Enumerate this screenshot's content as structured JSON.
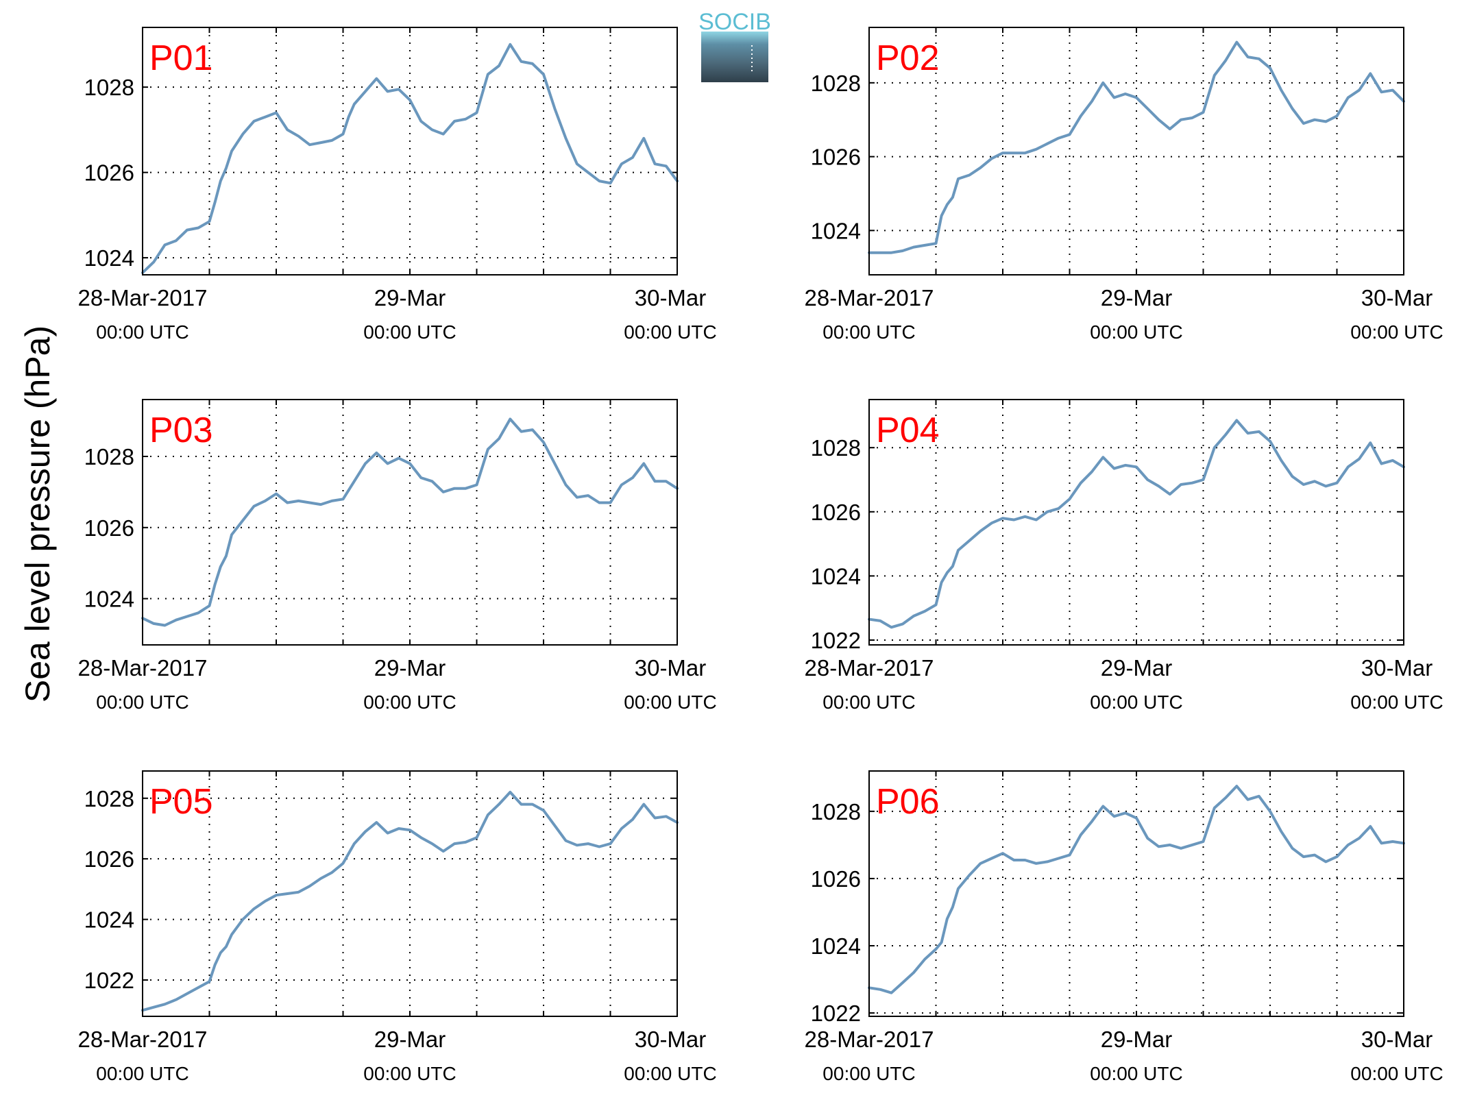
{
  "logo": {
    "text": "SOCIB"
  },
  "colors": {
    "series": "#6a97bd",
    "panel_label": "#ff0000",
    "logo_text": "#5bbdd3",
    "logo_dark": "#31434f"
  },
  "y_label": "Sea level pressure (hPa)",
  "x_tick_labels": [
    {
      "date": "28-Mar-2017",
      "time": "00:00 UTC"
    },
    {
      "date": "29-Mar",
      "time": "00:00 UTC"
    },
    {
      "date": "30-Mar",
      "time": "00:00 UTC"
    }
  ],
  "chart_data": [
    {
      "type": "line",
      "title": "P01",
      "x_unit": "hours since 28-Mar-2017 00:00 UTC",
      "xlim": [
        0,
        48
      ],
      "ylim": [
        1023.6,
        1029.4
      ],
      "yticks": [
        1024,
        1026,
        1028
      ],
      "xticks": [
        0,
        6,
        12,
        18,
        24,
        30,
        36,
        42,
        48
      ],
      "grid": true,
      "series": [
        {
          "x": [
            0,
            1,
            2,
            3,
            4,
            5,
            6,
            6.5,
            7,
            7.5,
            8,
            9,
            10,
            11,
            12,
            13,
            14,
            15,
            16,
            17,
            18,
            18.5,
            19,
            20,
            21,
            22,
            23,
            24,
            25,
            26,
            27,
            28,
            29,
            30,
            31,
            32,
            33,
            34,
            35,
            36,
            37,
            38,
            39,
            40,
            41,
            42,
            43,
            44,
            45,
            46,
            47,
            48
          ],
          "y": [
            1023.65,
            1023.9,
            1024.3,
            1024.4,
            1024.65,
            1024.7,
            1024.85,
            1025.3,
            1025.8,
            1026.1,
            1026.5,
            1026.9,
            1027.2,
            1027.3,
            1027.4,
            1027.0,
            1026.85,
            1026.65,
            1026.7,
            1026.75,
            1026.9,
            1027.3,
            1027.6,
            1027.9,
            1028.2,
            1027.9,
            1027.95,
            1027.7,
            1027.2,
            1027.0,
            1026.9,
            1027.2,
            1027.25,
            1027.4,
            1028.3,
            1028.5,
            1029.0,
            1028.6,
            1028.55,
            1028.3,
            1027.5,
            1026.8,
            1026.2,
            1026.0,
            1025.8,
            1025.75,
            1026.2,
            1026.35,
            1026.8,
            1026.2,
            1026.15,
            1025.8
          ]
        }
      ]
    },
    {
      "type": "line",
      "title": "P02",
      "x_unit": "hours since 28-Mar-2017 00:00 UTC",
      "xlim": [
        0,
        48
      ],
      "ylim": [
        1022.8,
        1029.5
      ],
      "yticks": [
        1024,
        1026,
        1028
      ],
      "xticks": [
        0,
        6,
        12,
        18,
        24,
        30,
        36,
        42,
        48
      ],
      "grid": true,
      "series": [
        {
          "x": [
            0,
            1,
            2,
            3,
            4,
            5,
            6,
            6.5,
            7,
            7.5,
            8,
            9,
            10,
            11,
            12,
            13,
            14,
            15,
            16,
            17,
            18,
            19,
            20,
            21,
            22,
            23,
            24,
            25,
            26,
            27,
            28,
            29,
            30,
            31,
            32,
            33,
            34,
            35,
            36,
            37,
            38,
            39,
            40,
            41,
            42,
            43,
            44,
            45,
            46,
            47,
            48
          ],
          "y": [
            1023.4,
            1023.4,
            1023.4,
            1023.45,
            1023.55,
            1023.6,
            1023.65,
            1024.4,
            1024.7,
            1024.9,
            1025.4,
            1025.5,
            1025.7,
            1025.95,
            1026.1,
            1026.1,
            1026.1,
            1026.2,
            1026.35,
            1026.5,
            1026.6,
            1027.1,
            1027.5,
            1028.0,
            1027.6,
            1027.7,
            1027.6,
            1027.3,
            1027.0,
            1026.75,
            1027.0,
            1027.05,
            1027.2,
            1028.2,
            1028.6,
            1029.1,
            1028.7,
            1028.65,
            1028.4,
            1027.8,
            1027.3,
            1026.9,
            1027.0,
            1026.95,
            1027.1,
            1027.6,
            1027.8,
            1028.25,
            1027.75,
            1027.8,
            1027.5
          ]
        }
      ]
    },
    {
      "type": "line",
      "title": "P03",
      "x_unit": "hours since 28-Mar-2017 00:00 UTC",
      "xlim": [
        0,
        48
      ],
      "ylim": [
        1022.7,
        1029.6
      ],
      "yticks": [
        1024,
        1026,
        1028
      ],
      "xticks": [
        0,
        6,
        12,
        18,
        24,
        30,
        36,
        42,
        48
      ],
      "grid": true,
      "series": [
        {
          "x": [
            0,
            1,
            2,
            3,
            4,
            5,
            6,
            6.5,
            7,
            7.5,
            8,
            9,
            10,
            11,
            12,
            13,
            14,
            15,
            16,
            17,
            18,
            19,
            20,
            21,
            22,
            23,
            24,
            25,
            26,
            27,
            28,
            29,
            30,
            31,
            32,
            33,
            34,
            35,
            36,
            37,
            38,
            39,
            40,
            41,
            42,
            43,
            44,
            45,
            46,
            47,
            48
          ],
          "y": [
            1023.45,
            1023.3,
            1023.25,
            1023.4,
            1023.5,
            1023.6,
            1023.8,
            1024.4,
            1024.9,
            1025.2,
            1025.8,
            1026.2,
            1026.6,
            1026.75,
            1026.95,
            1026.7,
            1026.75,
            1026.7,
            1026.65,
            1026.75,
            1026.8,
            1027.3,
            1027.8,
            1028.1,
            1027.8,
            1027.95,
            1027.8,
            1027.4,
            1027.3,
            1027.0,
            1027.1,
            1027.1,
            1027.2,
            1028.2,
            1028.5,
            1029.05,
            1028.7,
            1028.75,
            1028.4,
            1027.8,
            1027.2,
            1026.85,
            1026.9,
            1026.7,
            1026.7,
            1027.2,
            1027.4,
            1027.8,
            1027.3,
            1027.3,
            1027.1
          ]
        }
      ]
    },
    {
      "type": "line",
      "title": "P04",
      "x_unit": "hours since 28-Mar-2017 00:00 UTC",
      "xlim": [
        0,
        48
      ],
      "ylim": [
        1021.85,
        1029.5
      ],
      "yticks": [
        1022,
        1024,
        1026,
        1028
      ],
      "xticks": [
        0,
        6,
        12,
        18,
        24,
        30,
        36,
        42,
        48
      ],
      "grid": true,
      "series": [
        {
          "x": [
            0,
            1,
            2,
            3,
            4,
            5,
            6,
            6.5,
            7,
            7.5,
            8,
            9,
            10,
            11,
            12,
            13,
            14,
            15,
            16,
            17,
            18,
            19,
            20,
            21,
            22,
            23,
            24,
            25,
            26,
            27,
            28,
            29,
            30,
            31,
            32,
            33,
            34,
            35,
            36,
            37,
            38,
            39,
            40,
            41,
            42,
            43,
            44,
            45,
            46,
            47,
            48
          ],
          "y": [
            1022.65,
            1022.6,
            1022.4,
            1022.5,
            1022.75,
            1022.9,
            1023.1,
            1023.8,
            1024.1,
            1024.3,
            1024.8,
            1025.1,
            1025.4,
            1025.65,
            1025.8,
            1025.75,
            1025.85,
            1025.75,
            1026.0,
            1026.1,
            1026.4,
            1026.9,
            1027.25,
            1027.7,
            1027.35,
            1027.45,
            1027.4,
            1027.0,
            1026.8,
            1026.55,
            1026.85,
            1026.9,
            1027.0,
            1028.0,
            1028.4,
            1028.85,
            1028.45,
            1028.5,
            1028.2,
            1027.6,
            1027.1,
            1026.85,
            1026.95,
            1026.8,
            1026.9,
            1027.4,
            1027.65,
            1028.15,
            1027.5,
            1027.6,
            1027.4
          ]
        }
      ]
    },
    {
      "type": "line",
      "title": "P05",
      "x_unit": "hours since 28-Mar-2017 00:00 UTC",
      "xlim": [
        0,
        48
      ],
      "ylim": [
        1020.8,
        1028.9
      ],
      "yticks": [
        1022,
        1024,
        1026,
        1028
      ],
      "xticks": [
        0,
        6,
        12,
        18,
        24,
        30,
        36,
        42,
        48
      ],
      "grid": true,
      "series": [
        {
          "x": [
            0,
            1,
            2,
            3,
            4,
            5,
            6,
            6.5,
            7,
            7.5,
            8,
            9,
            10,
            11,
            12,
            13,
            14,
            15,
            16,
            17,
            18,
            19,
            20,
            21,
            22,
            23,
            24,
            25,
            26,
            27,
            28,
            29,
            30,
            31,
            32,
            33,
            34,
            35,
            36,
            37,
            38,
            39,
            40,
            41,
            42,
            43,
            44,
            45,
            46,
            47,
            48
          ],
          "y": [
            1021.0,
            1021.1,
            1021.2,
            1021.35,
            1021.55,
            1021.75,
            1021.95,
            1022.5,
            1022.9,
            1023.1,
            1023.5,
            1024.0,
            1024.35,
            1024.6,
            1024.8,
            1024.85,
            1024.9,
            1025.1,
            1025.35,
            1025.55,
            1025.85,
            1026.5,
            1026.9,
            1027.2,
            1026.85,
            1027.0,
            1026.95,
            1026.7,
            1026.5,
            1026.25,
            1026.5,
            1026.55,
            1026.7,
            1027.45,
            1027.8,
            1028.2,
            1027.8,
            1027.8,
            1027.6,
            1027.1,
            1026.6,
            1026.45,
            1026.5,
            1026.4,
            1026.5,
            1027.0,
            1027.3,
            1027.8,
            1027.35,
            1027.4,
            1027.2
          ]
        }
      ]
    },
    {
      "type": "line",
      "title": "P06",
      "x_unit": "hours since 28-Mar-2017 00:00 UTC",
      "xlim": [
        0,
        48
      ],
      "ylim": [
        1021.9,
        1029.2
      ],
      "yticks": [
        1022,
        1024,
        1026,
        1028
      ],
      "xticks": [
        0,
        6,
        12,
        18,
        24,
        30,
        36,
        42,
        48
      ],
      "grid": true,
      "series": [
        {
          "x": [
            0,
            1,
            2,
            3,
            4,
            5,
            6,
            6.5,
            7,
            7.5,
            8,
            9,
            10,
            11,
            12,
            13,
            14,
            15,
            16,
            17,
            18,
            19,
            20,
            21,
            22,
            23,
            24,
            25,
            26,
            27,
            28,
            29,
            30,
            31,
            32,
            33,
            34,
            35,
            36,
            37,
            38,
            39,
            40,
            41,
            42,
            43,
            44,
            45,
            46,
            47,
            48
          ],
          "y": [
            1022.75,
            1022.7,
            1022.6,
            1022.9,
            1023.2,
            1023.6,
            1023.9,
            1024.1,
            1024.8,
            1025.15,
            1025.7,
            1026.1,
            1026.45,
            1026.6,
            1026.75,
            1026.55,
            1026.55,
            1026.45,
            1026.5,
            1026.6,
            1026.7,
            1027.3,
            1027.7,
            1028.15,
            1027.85,
            1027.95,
            1027.8,
            1027.2,
            1026.95,
            1027.0,
            1026.9,
            1027.0,
            1027.1,
            1028.1,
            1028.4,
            1028.75,
            1028.35,
            1028.45,
            1028.0,
            1027.4,
            1026.9,
            1026.65,
            1026.7,
            1026.5,
            1026.65,
            1027.0,
            1027.2,
            1027.55,
            1027.05,
            1027.1,
            1027.05
          ]
        }
      ]
    }
  ]
}
